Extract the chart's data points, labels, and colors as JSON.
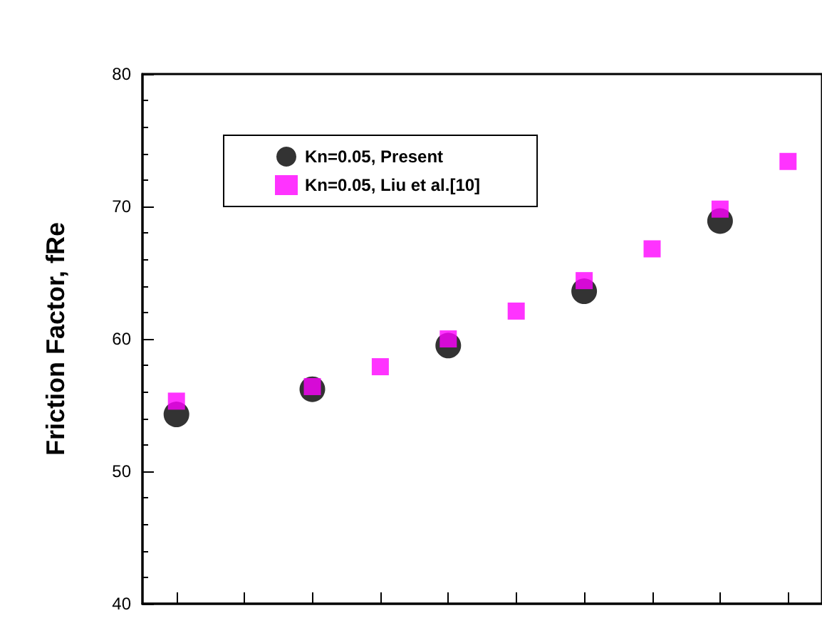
{
  "chart_data": {
    "type": "scatter",
    "ylabel": "Friction Factor, fRe",
    "categories": [
      null,
      null,
      null,
      null,
      null,
      null,
      null,
      null,
      null,
      null
    ],
    "ylim": [
      40,
      80
    ],
    "yticks": [
      40,
      50,
      60,
      70,
      80
    ],
    "grid": false,
    "legend": "top left",
    "tick_labels": "y",
    "series": [
      {
        "name": "Kn=0.05, Present",
        "color": "#000000",
        "marker": "circle",
        "values": [
          54.3,
          null,
          56.2,
          null,
          59.5,
          null,
          63.6,
          null,
          68.9,
          null
        ]
      },
      {
        "name": "Kn=0.05, Liu et al.[10]",
        "color": "#ff00ff",
        "marker": "square",
        "values": [
          55.3,
          null,
          56.4,
          57.9,
          60.0,
          62.1,
          64.4,
          66.8,
          69.8,
          73.4
        ]
      }
    ]
  }
}
